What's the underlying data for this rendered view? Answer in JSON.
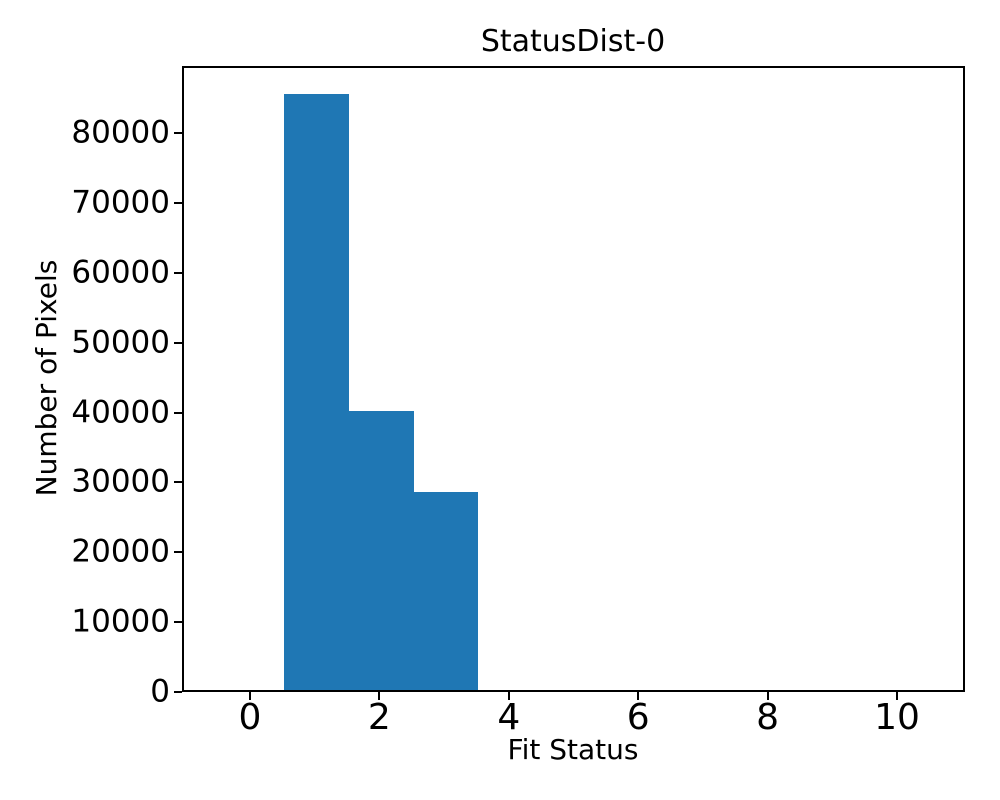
{
  "figure": {
    "title": "StatusDist-0",
    "xlabel": "Fit Status",
    "ylabel": "Number of Pixels"
  },
  "chart_data": {
    "type": "bar",
    "subtype": "histogram",
    "title": "StatusDist-0",
    "xlabel": "Fit Status",
    "ylabel": "Number of Pixels",
    "bins": [
      {
        "x_start": 0.5,
        "x_end": 1.5,
        "count": 85300
      },
      {
        "x_start": 1.5,
        "x_end": 2.5,
        "count": 40000
      },
      {
        "x_start": 2.5,
        "x_end": 3.5,
        "count": 28400
      }
    ],
    "xticks": [
      0,
      2,
      4,
      6,
      8,
      10
    ],
    "yticks": [
      0,
      10000,
      20000,
      30000,
      40000,
      50000,
      60000,
      70000,
      80000
    ],
    "xlim": [
      -1.05,
      11.05
    ],
    "ylim": [
      0,
      89600
    ],
    "grid": false,
    "legend": null,
    "bar_color": "#1f77b4",
    "spine_color": "#000000",
    "background_color": "#ffffff"
  }
}
